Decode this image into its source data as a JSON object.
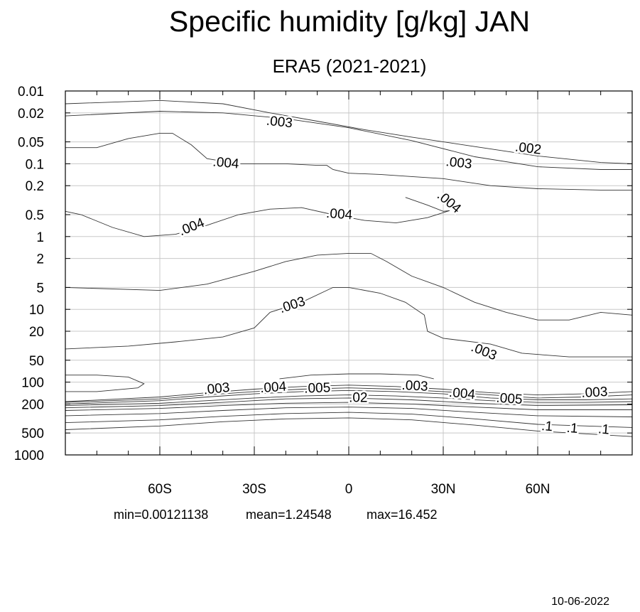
{
  "chart_data": {
    "type": "contour",
    "title": "Specific humidity [g/kg] JAN",
    "subtitle": "ERA5 (2021-2021)",
    "x_axis": {
      "range": [
        -90,
        90
      ],
      "ticks": [
        -60,
        -30,
        0,
        30,
        60
      ],
      "tick_labels": [
        "60S",
        "30S",
        "0",
        "30N",
        "60N"
      ]
    },
    "y_axis": {
      "scale": "log",
      "reversed": true,
      "range": [
        0.01,
        1000
      ],
      "ticks": [
        0.01,
        0.02,
        0.05,
        0.1,
        0.2,
        0.5,
        1,
        2,
        5,
        10,
        20,
        50,
        100,
        200,
        500,
        1000
      ],
      "tick_labels": [
        "0.01",
        "0.02",
        "0.05",
        "0.1",
        "0.2",
        "0.5",
        "1",
        "2",
        "5",
        "10",
        "20",
        "50",
        "100",
        "200",
        "500",
        "1000"
      ]
    },
    "grid": true,
    "stats": {
      "min": "min=0.00121138",
      "mean": "mean=1.24548",
      "max": "max=16.452"
    },
    "date": "10-06-2022",
    "contour_lines": [
      {
        "points": [
          [
            -90,
            0.015
          ],
          [
            -60,
            0.0135
          ],
          [
            -40,
            0.015
          ],
          [
            -25,
            0.02
          ],
          [
            -10,
            0.026
          ],
          [
            5,
            0.034
          ],
          [
            20,
            0.043
          ],
          [
            40,
            0.058
          ],
          [
            60,
            0.078
          ],
          [
            80,
            0.096
          ],
          [
            90,
            0.1
          ]
        ]
      },
      {
        "points": [
          [
            -90,
            0.022
          ],
          [
            -60,
            0.019
          ],
          [
            -40,
            0.02
          ],
          [
            -20,
            0.024
          ],
          [
            0,
            0.032
          ],
          [
            20,
            0.048
          ],
          [
            40,
            0.08
          ],
          [
            60,
            0.11
          ],
          [
            80,
            0.12
          ],
          [
            90,
            0.12
          ]
        ]
      },
      {
        "points": [
          [
            -90,
            0.06
          ],
          [
            -80,
            0.06
          ],
          [
            -70,
            0.045
          ],
          [
            -60,
            0.038
          ],
          [
            -56,
            0.038
          ],
          [
            -50,
            0.055
          ],
          [
            -45,
            0.085
          ],
          [
            -35,
            0.1
          ],
          [
            -20,
            0.1
          ],
          [
            -10,
            0.105
          ],
          [
            -7,
            0.105
          ],
          [
            -5,
            0.12
          ],
          [
            0,
            0.135
          ],
          [
            10,
            0.14
          ],
          [
            20,
            0.15
          ],
          [
            30,
            0.16
          ],
          [
            45,
            0.2
          ],
          [
            60,
            0.22
          ],
          [
            80,
            0.23
          ],
          [
            90,
            0.23
          ]
        ]
      },
      {
        "label": ".004",
        "points": [
          [
            18,
            0.29
          ],
          [
            25,
            0.37
          ],
          [
            30,
            0.45
          ],
          [
            32,
            0.44
          ],
          [
            25,
            0.55
          ],
          [
            15,
            0.65
          ],
          [
            5,
            0.6
          ],
          [
            -5,
            0.5
          ],
          [
            -15,
            0.4
          ],
          [
            -25,
            0.42
          ],
          [
            -35,
            0.5
          ],
          [
            -45,
            0.7
          ],
          [
            -55,
            0.93
          ],
          [
            -65,
            1
          ],
          [
            -75,
            0.75
          ],
          [
            -85,
            0.5
          ],
          [
            -90,
            0.45
          ]
        ]
      },
      {
        "points": [
          [
            -90,
            5
          ],
          [
            -60,
            5.5
          ],
          [
            -45,
            4.5
          ],
          [
            -30,
            3.0
          ],
          [
            -20,
            2.2
          ],
          [
            -10,
            1.8
          ],
          [
            0,
            1.7
          ],
          [
            7,
            1.7
          ],
          [
            12,
            2.2
          ],
          [
            20,
            3.5
          ],
          [
            30,
            5
          ],
          [
            40,
            8
          ],
          [
            50,
            11
          ],
          [
            60,
            14
          ],
          [
            70,
            14
          ],
          [
            80,
            11
          ],
          [
            90,
            12
          ]
        ]
      },
      {
        "label": ".003",
        "points": [
          [
            -90,
            35
          ],
          [
            -70,
            32
          ],
          [
            -55,
            28
          ],
          [
            -40,
            24
          ],
          [
            -30,
            18
          ],
          [
            -25,
            11
          ],
          [
            -15,
            8
          ],
          [
            -5,
            5
          ],
          [
            0,
            5
          ],
          [
            10,
            6
          ],
          [
            18,
            8
          ],
          [
            24,
            12
          ],
          [
            25,
            20
          ],
          [
            30,
            25
          ],
          [
            45,
            30
          ],
          [
            55,
            40
          ],
          [
            70,
            45
          ],
          [
            80,
            45
          ],
          [
            90,
            45
          ]
        ]
      },
      {
        "points": [
          [
            -90,
            80
          ],
          [
            -80,
            80
          ],
          [
            -70,
            85
          ],
          [
            -65,
            105
          ],
          [
            -67,
            120
          ],
          [
            -80,
            135
          ],
          [
            -90,
            135
          ]
        ]
      },
      {
        "points": [
          [
            -22,
            90
          ],
          [
            -12,
            80
          ],
          [
            0,
            77
          ],
          [
            10,
            77
          ],
          [
            22,
            80
          ],
          [
            27,
            90
          ]
        ]
      },
      {
        "label": ".003",
        "points": [
          [
            -90,
            185
          ],
          [
            -60,
            160
          ],
          [
            -45,
            140
          ],
          [
            -30,
            125
          ],
          [
            -15,
            115
          ],
          [
            0,
            110
          ],
          [
            15,
            115
          ],
          [
            30,
            125
          ],
          [
            45,
            140
          ],
          [
            60,
            150
          ],
          [
            75,
            145
          ],
          [
            90,
            135
          ]
        ]
      },
      {
        "label": ".004",
        "points": [
          [
            -90,
            190
          ],
          [
            -60,
            170
          ],
          [
            -45,
            150
          ],
          [
            -30,
            135
          ],
          [
            -15,
            125
          ],
          [
            0,
            120
          ],
          [
            15,
            125
          ],
          [
            30,
            135
          ],
          [
            45,
            150
          ],
          [
            60,
            165
          ],
          [
            75,
            160
          ],
          [
            90,
            150
          ]
        ]
      },
      {
        "label": ".005",
        "points": [
          [
            -90,
            200
          ],
          [
            -60,
            180
          ],
          [
            -45,
            160
          ],
          [
            -30,
            145
          ],
          [
            -15,
            135
          ],
          [
            0,
            130
          ],
          [
            15,
            135
          ],
          [
            30,
            145
          ],
          [
            45,
            165
          ],
          [
            60,
            175
          ],
          [
            75,
            175
          ],
          [
            90,
            170
          ]
        ]
      },
      {
        "label": ".02",
        "points": [
          [
            -90,
            210
          ],
          [
            -60,
            195
          ],
          [
            -45,
            180
          ],
          [
            -30,
            165
          ],
          [
            -15,
            155
          ],
          [
            0,
            150
          ],
          [
            15,
            155
          ],
          [
            30,
            165
          ],
          [
            45,
            180
          ],
          [
            60,
            190
          ],
          [
            75,
            190
          ],
          [
            90,
            185
          ]
        ]
      },
      {
        "points": [
          [
            -90,
            225
          ],
          [
            -60,
            210
          ],
          [
            -40,
            190
          ],
          [
            -20,
            170
          ],
          [
            0,
            165
          ],
          [
            20,
            175
          ],
          [
            40,
            195
          ],
          [
            60,
            210
          ],
          [
            90,
            205
          ]
        ]
      },
      {
        "points": [
          [
            -90,
            245
          ],
          [
            -60,
            230
          ],
          [
            -40,
            210
          ],
          [
            -20,
            195
          ],
          [
            0,
            190
          ],
          [
            20,
            200
          ],
          [
            40,
            220
          ],
          [
            60,
            240
          ],
          [
            90,
            240
          ]
        ]
      },
      {
        "points": [
          [
            -90,
            290
          ],
          [
            -60,
            270
          ],
          [
            -40,
            245
          ],
          [
            -20,
            225
          ],
          [
            0,
            220
          ],
          [
            20,
            230
          ],
          [
            40,
            260
          ],
          [
            60,
            290
          ],
          [
            90,
            300
          ]
        ]
      },
      {
        "label": ".1",
        "points": [
          [
            -90,
            360
          ],
          [
            -60,
            330
          ],
          [
            -40,
            295
          ],
          [
            -20,
            270
          ],
          [
            0,
            260
          ],
          [
            20,
            275
          ],
          [
            40,
            320
          ],
          [
            60,
            380
          ],
          [
            90,
            420
          ]
        ]
      },
      {
        "points": [
          [
            -90,
            450
          ],
          [
            -60,
            400
          ],
          [
            -40,
            350
          ],
          [
            -20,
            320
          ],
          [
            0,
            310
          ],
          [
            20,
            330
          ],
          [
            40,
            390
          ],
          [
            60,
            470
          ],
          [
            90,
            560
          ]
        ]
      }
    ],
    "contour_labels": [
      {
        "text": ".003",
        "x": -22,
        "y": 0.026,
        "rotate": 6
      },
      {
        "text": ".002",
        "x": 57,
        "y": 0.06,
        "rotate": 7
      },
      {
        "text": ".004",
        "x": -39,
        "y": 0.095,
        "rotate": 5
      },
      {
        "text": ".003",
        "x": 35,
        "y": 0.095,
        "rotate": 6
      },
      {
        "text": ".004",
        "x": 32,
        "y": 0.33,
        "rotate": 40
      },
      {
        "text": ".004",
        "x": -3,
        "y": 0.48,
        "rotate": 4
      },
      {
        "text": ".004",
        "x": -50,
        "y": 0.72,
        "rotate": -22
      },
      {
        "text": ".003",
        "x": -18,
        "y": 8.5,
        "rotate": -18
      },
      {
        "text": ".003",
        "x": 43,
        "y": 37,
        "rotate": 22
      },
      {
        "text": ".003",
        "x": -42,
        "y": 120,
        "rotate": -6
      },
      {
        "text": ".004",
        "x": -24,
        "y": 115,
        "rotate": -4
      },
      {
        "text": ".005",
        "x": -10,
        "y": 118,
        "rotate": -2
      },
      {
        "text": ".003",
        "x": 21,
        "y": 110,
        "rotate": 3
      },
      {
        "text": ".02",
        "x": 3,
        "y": 160,
        "rotate": 0
      },
      {
        "text": ".004",
        "x": 36,
        "y": 140,
        "rotate": 5
      },
      {
        "text": ".005",
        "x": 51,
        "y": 165,
        "rotate": 4
      },
      {
        "text": ".003",
        "x": 78,
        "y": 135,
        "rotate": -3
      },
      {
        "text": ".1",
        "x": 63,
        "y": 395,
        "rotate": 5
      },
      {
        "text": ".1",
        "x": 71,
        "y": 420,
        "rotate": 5
      },
      {
        "text": ".1",
        "x": 81,
        "y": 435,
        "rotate": 5
      }
    ]
  }
}
